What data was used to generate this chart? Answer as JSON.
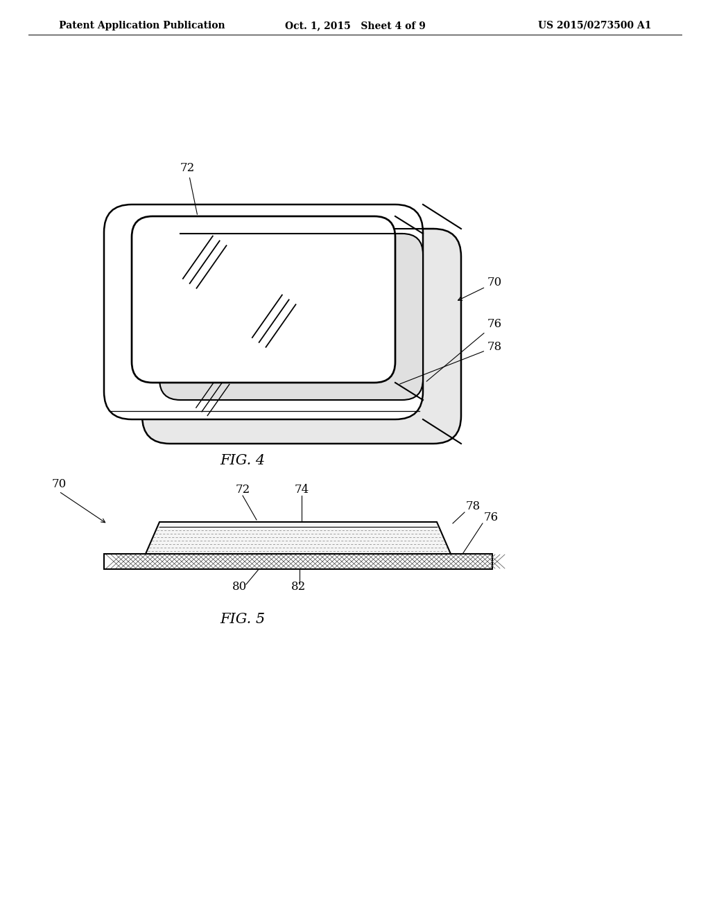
{
  "background_color": "#ffffff",
  "header_left": "Patent Application Publication",
  "header_center": "Oct. 1, 2015   Sheet 4 of 9",
  "header_right": "US 2015/0273500 A1",
  "fig4_label": "FIG. 4",
  "fig5_label": "FIG. 5",
  "line_color": "#000000",
  "line_width": 1.5,
  "thin_line": 0.8
}
